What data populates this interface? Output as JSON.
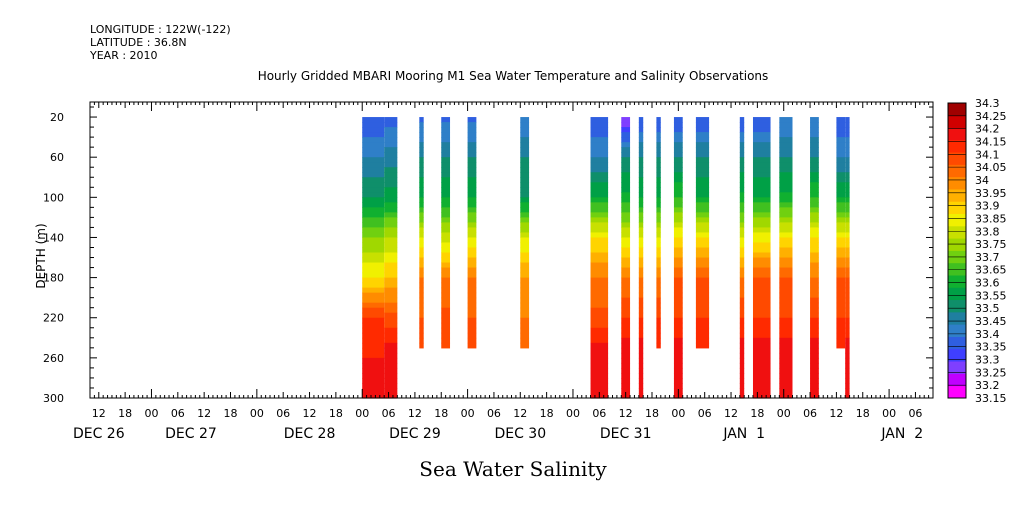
{
  "header": {
    "lines": [
      "LONGITUDE : 122W(-122)",
      "LATITUDE : 36.8N",
      "YEAR : 2010"
    ]
  },
  "chart_data": {
    "type": "heatmap",
    "title": "Hourly Gridded MBARI Mooring M1 Sea Water Temperature and Salinity Observations",
    "xlabel": "Sea Water Salinity",
    "ylabel": "DEPTH (m)",
    "x_unit": "hours since DEC 26 00:00, 2010",
    "xlim": [
      -14,
      178
    ],
    "ylim": [
      300,
      5
    ],
    "y_ticks": [
      20,
      60,
      100,
      140,
      180,
      220,
      260,
      300
    ],
    "x_hour_ticks": [
      {
        "h": -12,
        "label": "12"
      },
      {
        "h": -6,
        "label": "18"
      },
      {
        "h": 0,
        "label": "00"
      },
      {
        "h": 6,
        "label": "06"
      },
      {
        "h": 12,
        "label": "12"
      },
      {
        "h": 18,
        "label": "18"
      },
      {
        "h": 24,
        "label": "00"
      },
      {
        "h": 30,
        "label": "06"
      },
      {
        "h": 36,
        "label": "12"
      },
      {
        "h": 42,
        "label": "18"
      },
      {
        "h": 48,
        "label": "00"
      },
      {
        "h": 54,
        "label": "06"
      },
      {
        "h": 60,
        "label": "12"
      },
      {
        "h": 66,
        "label": "18"
      },
      {
        "h": 72,
        "label": "00"
      },
      {
        "h": 78,
        "label": "06"
      },
      {
        "h": 84,
        "label": "12"
      },
      {
        "h": 90,
        "label": "18"
      },
      {
        "h": 96,
        "label": "00"
      },
      {
        "h": 102,
        "label": "06"
      },
      {
        "h": 108,
        "label": "12"
      },
      {
        "h": 114,
        "label": "18"
      },
      {
        "h": 120,
        "label": "00"
      },
      {
        "h": 126,
        "label": "06"
      },
      {
        "h": 132,
        "label": "12"
      },
      {
        "h": 138,
        "label": "18"
      },
      {
        "h": 144,
        "label": "00"
      },
      {
        "h": 150,
        "label": "06"
      },
      {
        "h": 156,
        "label": "12"
      },
      {
        "h": 162,
        "label": "18"
      },
      {
        "h": 168,
        "label": "00"
      },
      {
        "h": 174,
        "label": "06"
      }
    ],
    "x_day_labels": [
      {
        "h": -12,
        "label": "DEC 26"
      },
      {
        "h": 9,
        "label": "DEC 27"
      },
      {
        "h": 36,
        "label": "DEC 28"
      },
      {
        "h": 60,
        "label": "DEC 29"
      },
      {
        "h": 84,
        "label": "DEC 30"
      },
      {
        "h": 108,
        "label": "DEC 31"
      },
      {
        "h": 135,
        "label": "JAN  1"
      },
      {
        "h": 171,
        "label": "JAN  2"
      }
    ],
    "colorbar": {
      "levels": [
        33.15,
        33.2,
        33.25,
        33.3,
        33.35,
        33.4,
        33.45,
        33.5,
        33.55,
        33.6,
        33.65,
        33.7,
        33.75,
        33.8,
        33.85,
        33.9,
        33.95,
        34.0,
        34.05,
        34.1,
        34.15,
        34.2,
        34.25,
        34.3
      ],
      "labels": [
        "34.3",
        "34.25",
        "34.2",
        "34.15",
        "34.1",
        "34.05",
        "34",
        "33.95",
        "33.9",
        "33.85",
        "33.8",
        "33.75",
        "33.7",
        "33.65",
        "33.6",
        "33.55",
        "33.5",
        "33.45",
        "33.4",
        "33.35",
        "33.3",
        "33.25",
        "33.2",
        "33.15"
      ],
      "colors": [
        "#ff00ff",
        "#c000ff",
        "#7f3fff",
        "#3f3fff",
        "#2f5fe0",
        "#2f7fc8",
        "#1f7fa0",
        "#0f8f6a",
        "#00a046",
        "#10b030",
        "#40c020",
        "#70d010",
        "#a0d800",
        "#c8e000",
        "#f0f000",
        "#ffd400",
        "#ffb000",
        "#ff8c00",
        "#ff6a00",
        "#ff4a00",
        "#ff2a00",
        "#f01010",
        "#d00000",
        "#a00000"
      ]
    },
    "profiles": [
      {
        "start": 48,
        "end": 53,
        "max_depth": 300,
        "values": {
          "20": 33.36,
          "60": 33.45,
          "100": 33.55,
          "140": 33.75,
          "180": 33.9,
          "220": 34.15,
          "260": 34.2,
          "300": 34.2
        }
      },
      {
        "start": 53,
        "end": 56,
        "max_depth": 300,
        "values": {
          "20": 33.38,
          "60": 33.48,
          "100": 33.58,
          "140": 33.8,
          "180": 33.95,
          "220": 34.12,
          "260": 34.25,
          "300": 34.2
        }
      },
      {
        "start": 61,
        "end": 62,
        "max_depth": 250,
        "values": {
          "20": 33.38,
          "60": 33.5,
          "100": 33.6,
          "140": 33.85,
          "180": 34.05,
          "220": 34.1,
          "250": 34.15
        }
      },
      {
        "start": 66,
        "end": 68,
        "max_depth": 250,
        "values": {
          "20": 33.38,
          "60": 33.5,
          "100": 33.6,
          "140": 33.82,
          "180": 34.05,
          "220": 34.12,
          "250": 34.15
        }
      },
      {
        "start": 72,
        "end": 74,
        "max_depth": 250,
        "values": {
          "20": 33.38,
          "60": 33.5,
          "100": 33.6,
          "140": 33.85,
          "180": 34.05,
          "220": 34.1,
          "250": 34.15
        }
      },
      {
        "start": 84,
        "end": 86,
        "max_depth": 250,
        "values": {
          "20": 33.4,
          "60": 33.5,
          "100": 33.55,
          "140": 33.85,
          "180": 34.0,
          "220": 34.05,
          "250": 34.1
        }
      },
      {
        "start": 100,
        "end": 104,
        "max_depth": 300,
        "values": {
          "20": 33.35,
          "60": 33.45,
          "100": 33.6,
          "140": 33.9,
          "180": 34.05,
          "220": 34.12,
          "260": 34.25,
          "300": 34.2
        }
      },
      {
        "start": 107,
        "end": 109,
        "max_depth": 300,
        "values": {
          "20": 33.25,
          "60": 33.5,
          "100": 33.62,
          "140": 33.85,
          "180": 34.05,
          "220": 34.15,
          "260": 34.25,
          "300": 34.2
        }
      },
      {
        "start": 111,
        "end": 112,
        "max_depth": 300,
        "values": {
          "20": 33.35,
          "60": 33.5,
          "100": 33.6,
          "140": 33.85,
          "180": 34.05,
          "220": 34.15,
          "260": 34.25,
          "300": 34.2
        }
      },
      {
        "start": 115,
        "end": 116,
        "max_depth": 250,
        "values": {
          "20": 33.35,
          "60": 33.5,
          "100": 33.6,
          "140": 33.85,
          "180": 34.05,
          "220": 34.15,
          "250": 34.2
        }
      },
      {
        "start": 119,
        "end": 121,
        "max_depth": 300,
        "values": {
          "20": 33.35,
          "60": 33.5,
          "100": 33.65,
          "140": 33.9,
          "180": 34.1,
          "220": 34.15,
          "260": 34.25,
          "300": 34.2
        }
      },
      {
        "start": 124,
        "end": 127,
        "max_depth": 250,
        "values": {
          "20": 33.35,
          "60": 33.5,
          "100": 33.6,
          "140": 33.9,
          "180": 34.1,
          "220": 34.15,
          "250": 34.2
        }
      },
      {
        "start": 134,
        "end": 135,
        "max_depth": 300,
        "values": {
          "20": 33.35,
          "60": 33.5,
          "100": 33.62,
          "140": 33.85,
          "180": 34.05,
          "220": 34.15,
          "260": 34.25,
          "300": 34.2
        }
      },
      {
        "start": 137,
        "end": 141,
        "max_depth": 300,
        "values": {
          "20": 33.35,
          "60": 33.5,
          "100": 33.6,
          "140": 33.88,
          "180": 34.1,
          "220": 34.15,
          "260": 34.25,
          "300": 34.2
        }
      },
      {
        "start": 143,
        "end": 146,
        "max_depth": 300,
        "values": {
          "20": 33.4,
          "60": 33.5,
          "100": 33.62,
          "140": 33.9,
          "180": 34.1,
          "220": 34.15,
          "260": 34.25,
          "300": 34.2
        }
      },
      {
        "start": 150,
        "end": 152,
        "max_depth": 300,
        "values": {
          "20": 33.4,
          "60": 33.5,
          "100": 33.65,
          "140": 33.9,
          "180": 34.05,
          "220": 34.15,
          "260": 34.25,
          "300": 34.2
        }
      },
      {
        "start": 156,
        "end": 158,
        "max_depth": 250,
        "values": {
          "20": 33.35,
          "60": 33.45,
          "100": 33.6,
          "140": 33.9,
          "180": 34.1,
          "220": 34.15,
          "250": 34.2
        }
      },
      {
        "start": 158,
        "end": 159,
        "max_depth": 300,
        "values": {
          "20": 33.35,
          "60": 33.45,
          "100": 33.6,
          "140": 33.9,
          "180": 34.1,
          "220": 34.15,
          "260": 34.25,
          "300": 34.2
        }
      }
    ]
  }
}
